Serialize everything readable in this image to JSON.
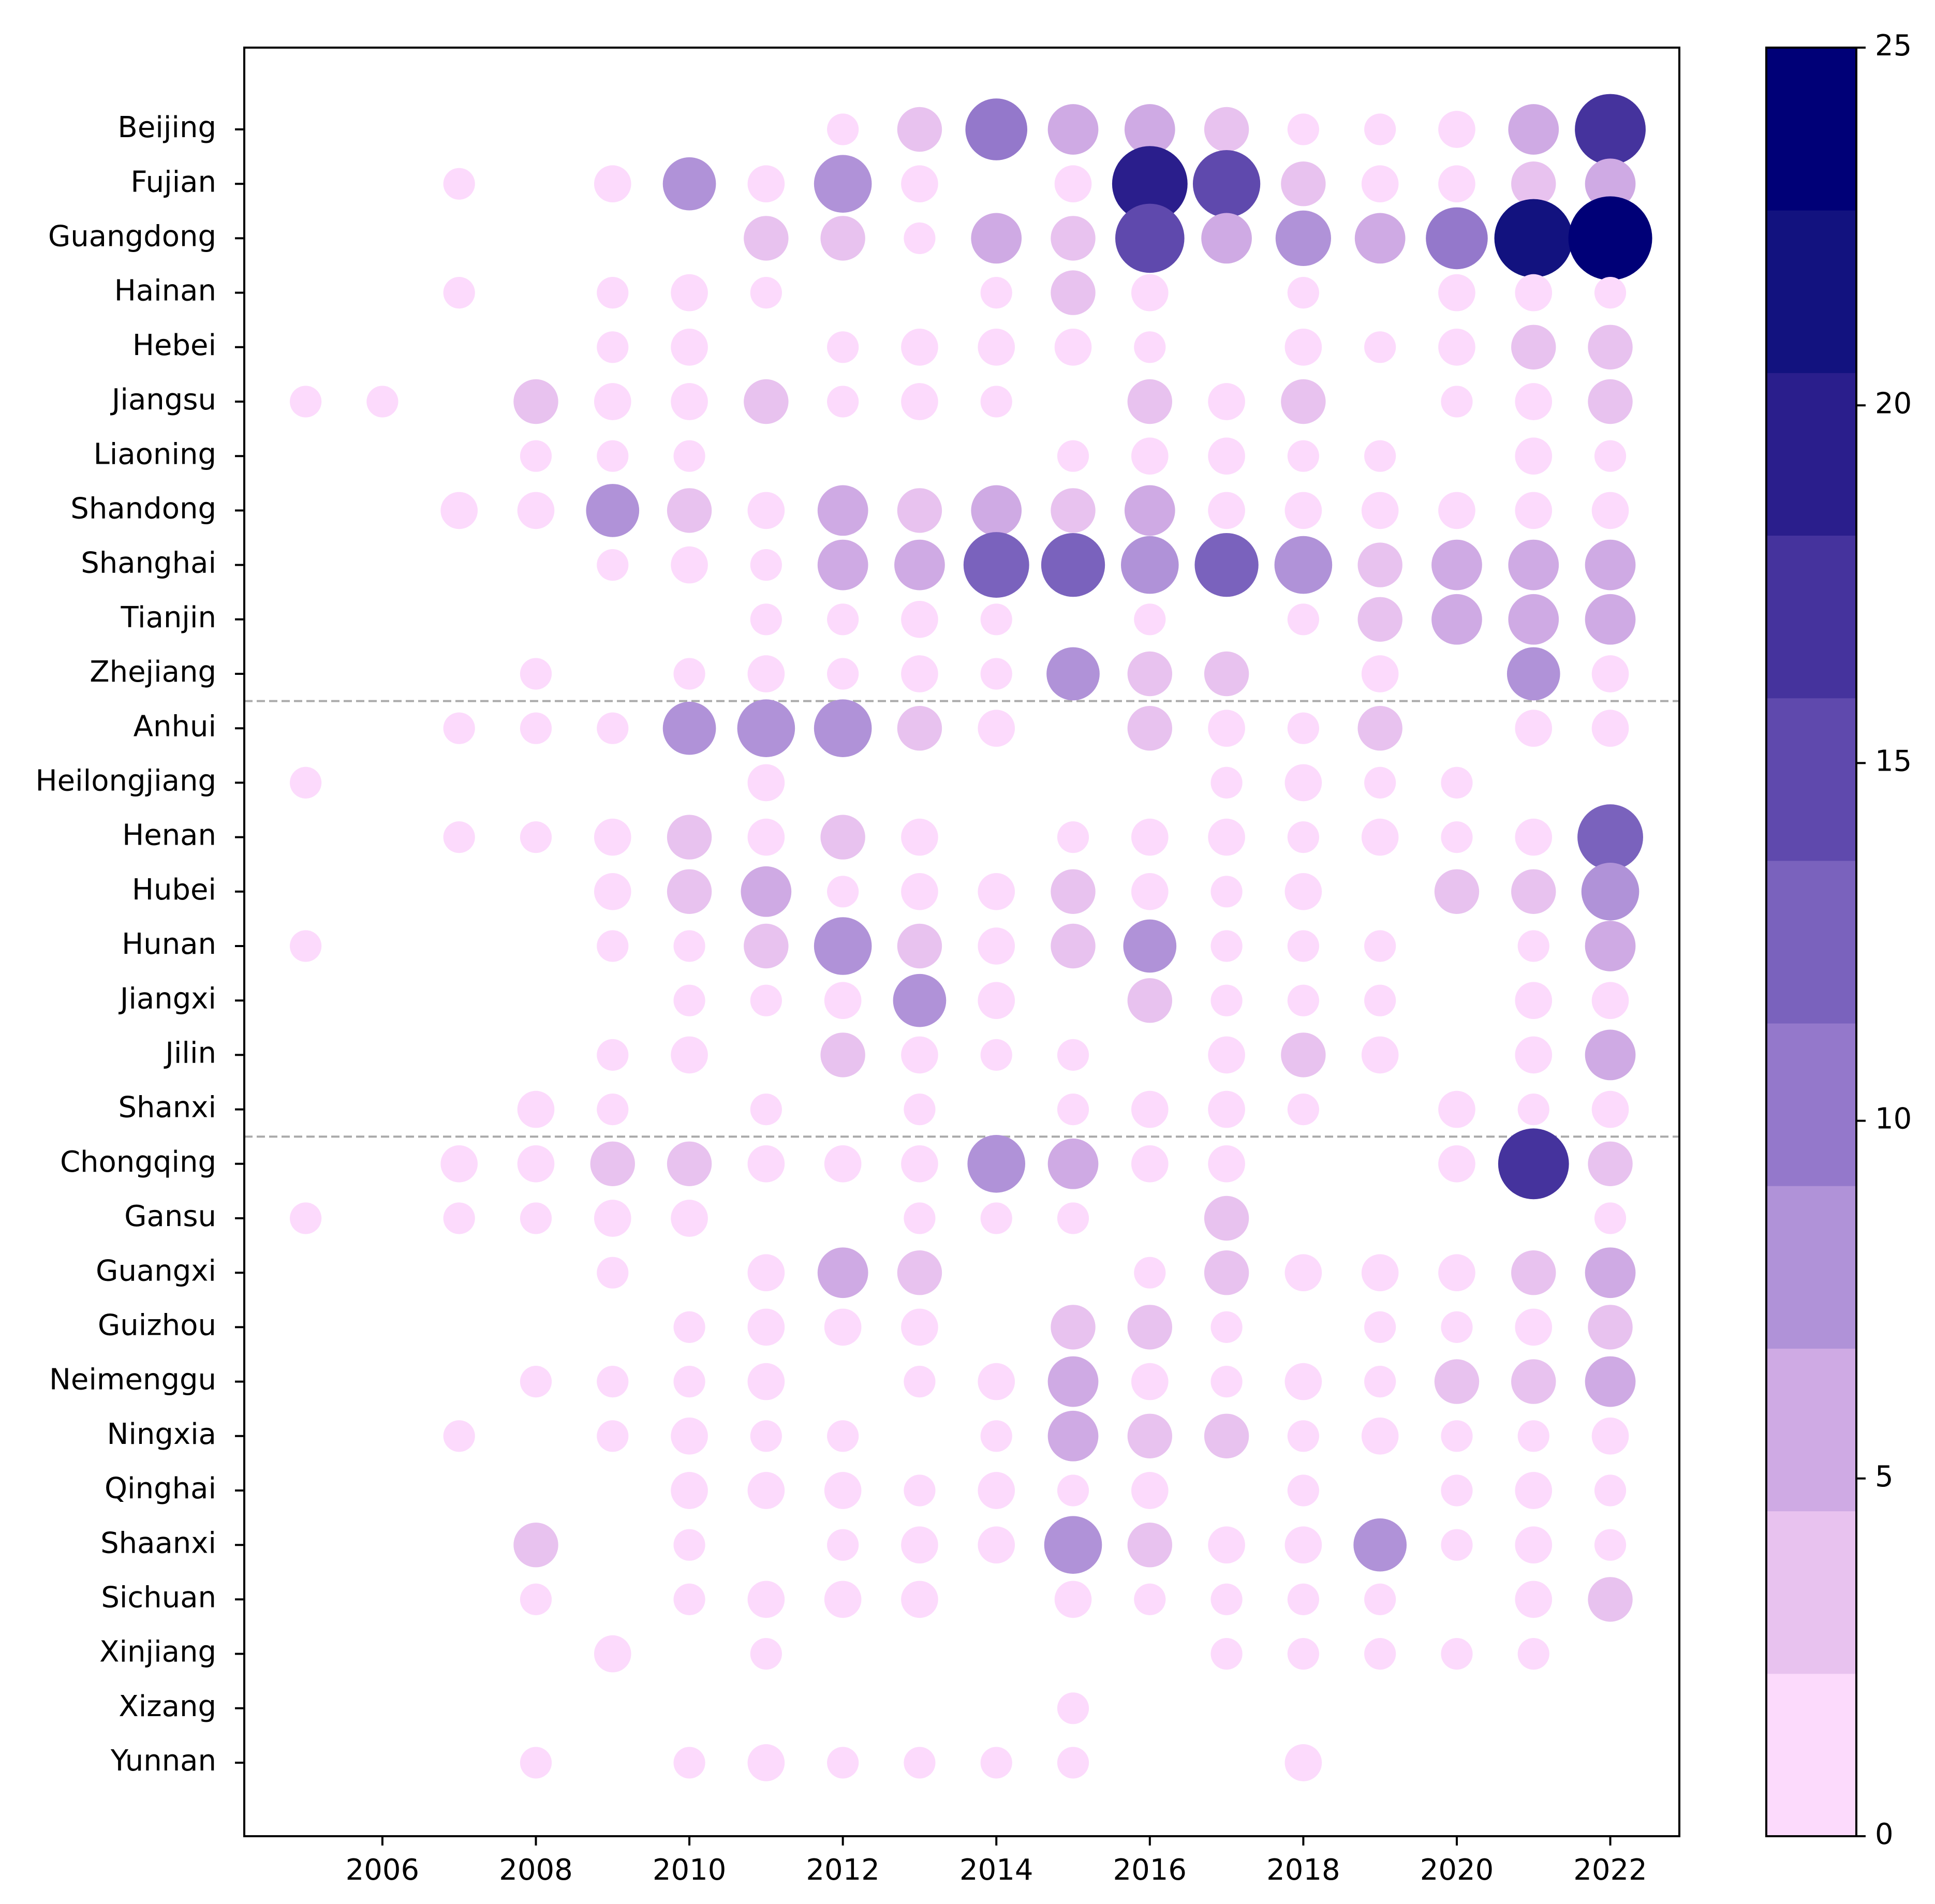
{
  "chart_data": {
    "type": "bubble-matrix",
    "x_ticks": [
      "2006",
      "2008",
      "2010",
      "2012",
      "2014",
      "2016",
      "2018",
      "2020",
      "2022"
    ],
    "x_range": [
      2004.2,
      2022.9
    ],
    "groups_separated_after": [
      "Zhejiang",
      "Shanxi"
    ],
    "provinces": [
      {
        "name": "Beijing",
        "values": {
          "2012": 1,
          "2013": 4,
          "2014": 11,
          "2015": 6,
          "2016": 6,
          "2017": 4,
          "2018": 1,
          "2019": 1,
          "2020": 2,
          "2021": 6,
          "2022": 16
        }
      },
      {
        "name": "Fujian",
        "values": {
          "2007": 1,
          "2009": 2,
          "2010": 7,
          "2011": 2,
          "2012": 9,
          "2013": 2,
          "2015": 2,
          "2016": 19,
          "2017": 14,
          "2018": 4,
          "2019": 2,
          "2020": 2,
          "2021": 4,
          "2022": 6
        }
      },
      {
        "name": "Guangdong",
        "values": {
          "2011": 4,
          "2012": 4,
          "2013": 1,
          "2014": 6,
          "2015": 4,
          "2016": 15,
          "2017": 6,
          "2018": 8,
          "2019": 6,
          "2020": 11,
          "2021": 21,
          "2022": 25
        }
      },
      {
        "name": "Hainan",
        "values": {
          "2007": 1,
          "2009": 1,
          "2010": 2,
          "2011": 1,
          "2014": 1,
          "2015": 4,
          "2016": 2,
          "2018": 1,
          "2020": 2,
          "2021": 2,
          "2022": 1
        }
      },
      {
        "name": "Hebei",
        "values": {
          "2009": 1,
          "2010": 2,
          "2012": 1,
          "2013": 2,
          "2014": 2,
          "2015": 2,
          "2016": 1,
          "2018": 2,
          "2019": 1,
          "2020": 2,
          "2021": 4,
          "2022": 4
        }
      },
      {
        "name": "Jiangsu",
        "values": {
          "2005": 1,
          "2006": 1,
          "2008": 4,
          "2009": 2,
          "2010": 2,
          "2011": 4,
          "2012": 1,
          "2013": 2,
          "2014": 1,
          "2016": 4,
          "2017": 2,
          "2018": 4,
          "2020": 1,
          "2021": 2,
          "2022": 4
        }
      },
      {
        "name": "Liaoning",
        "values": {
          "2008": 1,
          "2009": 1,
          "2010": 1,
          "2015": 1,
          "2016": 2,
          "2017": 2,
          "2018": 1,
          "2019": 1,
          "2021": 2,
          "2022": 1
        }
      },
      {
        "name": "Shandong",
        "values": {
          "2007": 2,
          "2008": 2,
          "2009": 7,
          "2010": 4,
          "2011": 2,
          "2012": 6,
          "2013": 4,
          "2014": 6,
          "2015": 4,
          "2016": 6,
          "2017": 2,
          "2018": 2,
          "2019": 2,
          "2020": 2,
          "2021": 2,
          "2022": 2
        }
      },
      {
        "name": "Shanghai",
        "values": {
          "2009": 1,
          "2010": 2,
          "2011": 1,
          "2012": 6,
          "2013": 6,
          "2014": 13,
          "2015": 12,
          "2016": 9,
          "2017": 12,
          "2018": 9,
          "2019": 4,
          "2020": 6,
          "2021": 6,
          "2022": 6
        }
      },
      {
        "name": "Tianjin",
        "values": {
          "2011": 1,
          "2012": 1,
          "2013": 2,
          "2014": 1,
          "2016": 1,
          "2018": 1,
          "2019": 4,
          "2020": 6,
          "2021": 6,
          "2022": 6
        }
      },
      {
        "name": "Zhejiang",
        "values": {
          "2008": 1,
          "2010": 1,
          "2011": 2,
          "2012": 1,
          "2013": 2,
          "2014": 1,
          "2015": 7,
          "2016": 4,
          "2017": 4,
          "2019": 2,
          "2021": 7,
          "2022": 2
        }
      },
      {
        "name": "Anhui",
        "values": {
          "2007": 1,
          "2008": 1,
          "2009": 1,
          "2010": 7,
          "2011": 9,
          "2012": 9,
          "2013": 4,
          "2014": 2,
          "2016": 4,
          "2017": 2,
          "2018": 1,
          "2019": 4,
          "2021": 2,
          "2022": 2
        }
      },
      {
        "name": "Heilongjiang",
        "values": {
          "2005": 1,
          "2011": 2,
          "2017": 1,
          "2018": 2,
          "2019": 1,
          "2020": 1
        }
      },
      {
        "name": "Henan",
        "values": {
          "2007": 1,
          "2008": 1,
          "2009": 2,
          "2010": 4,
          "2011": 2,
          "2012": 4,
          "2013": 2,
          "2015": 1,
          "2016": 2,
          "2017": 2,
          "2018": 1,
          "2019": 2,
          "2020": 1,
          "2021": 2,
          "2022": 13
        }
      },
      {
        "name": "Hubei",
        "values": {
          "2009": 2,
          "2010": 4,
          "2011": 6,
          "2012": 1,
          "2013": 2,
          "2014": 2,
          "2015": 4,
          "2016": 2,
          "2017": 1,
          "2018": 2,
          "2020": 4,
          "2021": 4,
          "2022": 9
        }
      },
      {
        "name": "Hunan",
        "values": {
          "2005": 1,
          "2009": 1,
          "2010": 1,
          "2011": 4,
          "2012": 9,
          "2013": 4,
          "2014": 2,
          "2015": 4,
          "2016": 7,
          "2017": 1,
          "2018": 1,
          "2019": 1,
          "2021": 1,
          "2022": 6
        }
      },
      {
        "name": "Jiangxi",
        "values": {
          "2010": 1,
          "2011": 1,
          "2012": 2,
          "2013": 7,
          "2014": 2,
          "2016": 4,
          "2017": 1,
          "2018": 1,
          "2019": 1,
          "2021": 2,
          "2022": 2
        }
      },
      {
        "name": "Jilin",
        "values": {
          "2009": 1,
          "2010": 2,
          "2012": 4,
          "2013": 2,
          "2014": 1,
          "2015": 1,
          "2017": 2,
          "2018": 4,
          "2019": 2,
          "2021": 2,
          "2022": 6
        }
      },
      {
        "name": "Shanxi",
        "values": {
          "2008": 2,
          "2009": 1,
          "2011": 1,
          "2013": 1,
          "2015": 1,
          "2016": 2,
          "2017": 2,
          "2018": 1,
          "2020": 2,
          "2021": 1,
          "2022": 2
        }
      },
      {
        "name": "Chongqing",
        "values": {
          "2007": 2,
          "2008": 2,
          "2009": 4,
          "2010": 4,
          "2011": 2,
          "2012": 2,
          "2013": 2,
          "2014": 9,
          "2015": 6,
          "2016": 2,
          "2017": 2,
          "2020": 2,
          "2021": 16,
          "2022": 4
        }
      },
      {
        "name": "Gansu",
        "values": {
          "2005": 1,
          "2007": 1,
          "2008": 1,
          "2009": 2,
          "2010": 2,
          "2013": 1,
          "2014": 1,
          "2015": 1,
          "2017": 4,
          "2022": 1
        }
      },
      {
        "name": "Guangxi",
        "values": {
          "2009": 1,
          "2011": 2,
          "2012": 6,
          "2013": 4,
          "2016": 1,
          "2017": 4,
          "2018": 2,
          "2019": 2,
          "2020": 2,
          "2021": 4,
          "2022": 6
        }
      },
      {
        "name": "Guizhou",
        "values": {
          "2010": 1,
          "2011": 2,
          "2012": 2,
          "2013": 2,
          "2015": 4,
          "2016": 4,
          "2017": 1,
          "2019": 1,
          "2020": 1,
          "2021": 2,
          "2022": 4
        }
      },
      {
        "name": "Neimenggu",
        "values": {
          "2008": 1,
          "2009": 1,
          "2010": 1,
          "2011": 2,
          "2013": 1,
          "2014": 2,
          "2015": 6,
          "2016": 2,
          "2017": 1,
          "2018": 2,
          "2019": 1,
          "2020": 4,
          "2021": 4,
          "2022": 6
        }
      },
      {
        "name": "Ningxia",
        "values": {
          "2007": 1,
          "2009": 1,
          "2010": 2,
          "2011": 1,
          "2012": 1,
          "2014": 1,
          "2015": 6,
          "2016": 4,
          "2017": 4,
          "2018": 1,
          "2019": 2,
          "2020": 1,
          "2021": 1,
          "2022": 2
        }
      },
      {
        "name": "Qinghai",
        "values": {
          "2010": 2,
          "2011": 2,
          "2012": 2,
          "2013": 1,
          "2014": 2,
          "2015": 1,
          "2016": 2,
          "2018": 1,
          "2020": 1,
          "2021": 2,
          "2022": 1
        }
      },
      {
        "name": "Shaanxi",
        "values": {
          "2008": 4,
          "2010": 1,
          "2012": 1,
          "2013": 2,
          "2014": 2,
          "2015": 9,
          "2016": 4,
          "2017": 2,
          "2018": 2,
          "2019": 7,
          "2020": 1,
          "2021": 2,
          "2022": 1
        }
      },
      {
        "name": "Sichuan",
        "values": {
          "2008": 1,
          "2010": 1,
          "2011": 2,
          "2012": 2,
          "2013": 2,
          "2015": 2,
          "2016": 1,
          "2017": 1,
          "2018": 1,
          "2019": 1,
          "2021": 2,
          "2022": 4
        }
      },
      {
        "name": "Xinjiang",
        "values": {
          "2009": 2,
          "2011": 1,
          "2017": 1,
          "2018": 1,
          "2019": 1,
          "2020": 1,
          "2021": 1
        }
      },
      {
        "name": "Xizang",
        "values": {
          "2015": 1
        }
      },
      {
        "name": "Yunnan",
        "values": {
          "2008": 1,
          "2010": 1,
          "2011": 2,
          "2012": 1,
          "2013": 1,
          "2014": 1,
          "2015": 1,
          "2018": 2
        }
      }
    ],
    "colorbar": {
      "min": 0,
      "max": 25,
      "ticks": [
        "0",
        "5",
        "10",
        "15",
        "20",
        "25"
      ],
      "colors": [
        "#fcdafc",
        "#e8c2ef",
        "#cfaae4",
        "#b092d8",
        "#9478cb",
        "#7a62bd",
        "#5f49ad",
        "#45339d",
        "#2a1e8c",
        "#12127f",
        "#000077"
      ]
    }
  }
}
